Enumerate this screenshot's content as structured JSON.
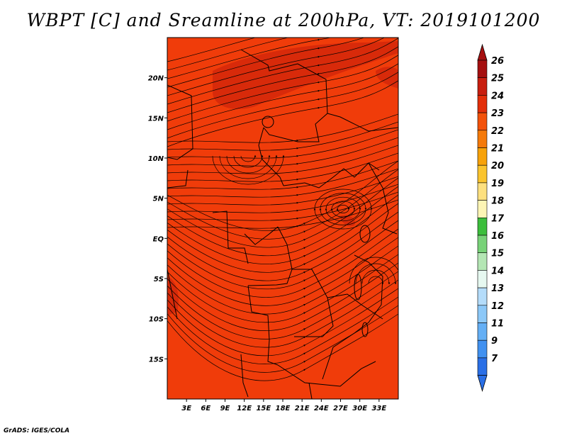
{
  "title": "WBPT [C] and Sreamline at 200hPa, VT: 2019101200",
  "credit": "GrADS: IGES/COLA",
  "map": {
    "lon_range": [
      0,
      36
    ],
    "lat_range": [
      -20,
      25
    ],
    "x_ticks": [
      {
        "value": 3,
        "label": "3E"
      },
      {
        "value": 6,
        "label": "6E"
      },
      {
        "value": 9,
        "label": "9E"
      },
      {
        "value": 12,
        "label": "12E"
      },
      {
        "value": 15,
        "label": "15E"
      },
      {
        "value": 18,
        "label": "18E"
      },
      {
        "value": 21,
        "label": "21E"
      },
      {
        "value": 24,
        "label": "24E"
      },
      {
        "value": 27,
        "label": "27E"
      },
      {
        "value": 30,
        "label": "30E"
      },
      {
        "value": 33,
        "label": "33E"
      }
    ],
    "y_ticks": [
      {
        "value": 20,
        "label": "20N"
      },
      {
        "value": 15,
        "label": "15N"
      },
      {
        "value": 10,
        "label": "10N"
      },
      {
        "value": 5,
        "label": "5N"
      },
      {
        "value": 0,
        "label": "EQ"
      },
      {
        "value": -5,
        "label": "5S"
      },
      {
        "value": -10,
        "label": "10S"
      },
      {
        "value": -15,
        "label": "15S"
      }
    ],
    "field_color": "#f03c0a",
    "patch_color": "#d82a0a",
    "line_color": "#000000"
  },
  "colorbar": {
    "levels": [
      {
        "label": "26",
        "color": "#a50f0f"
      },
      {
        "label": "25",
        "color": "#c81e0f"
      },
      {
        "label": "24",
        "color": "#e32f0a"
      },
      {
        "label": "23",
        "color": "#f3520a"
      },
      {
        "label": "22",
        "color": "#f57a0a"
      },
      {
        "label": "21",
        "color": "#f7a20a"
      },
      {
        "label": "20",
        "color": "#fac42e"
      },
      {
        "label": "19",
        "color": "#fde07f"
      },
      {
        "label": "18",
        "color": "#fdf5b5"
      },
      {
        "label": "17",
        "color": "#3cbe3c"
      },
      {
        "label": "16",
        "color": "#78d278"
      },
      {
        "label": "15",
        "color": "#b4e6b4"
      },
      {
        "label": "14",
        "color": "#e6f8f0"
      },
      {
        "label": "13",
        "color": "#b4dcfa"
      },
      {
        "label": "12",
        "color": "#8cc8f8"
      },
      {
        "label": "11",
        "color": "#64aff5"
      },
      {
        "label": "9",
        "color": "#4191f0"
      },
      {
        "label": "7",
        "color": "#2a6fe6"
      }
    ],
    "top_color": "#a50f0f",
    "bottom_color": "#2a6fe6"
  }
}
